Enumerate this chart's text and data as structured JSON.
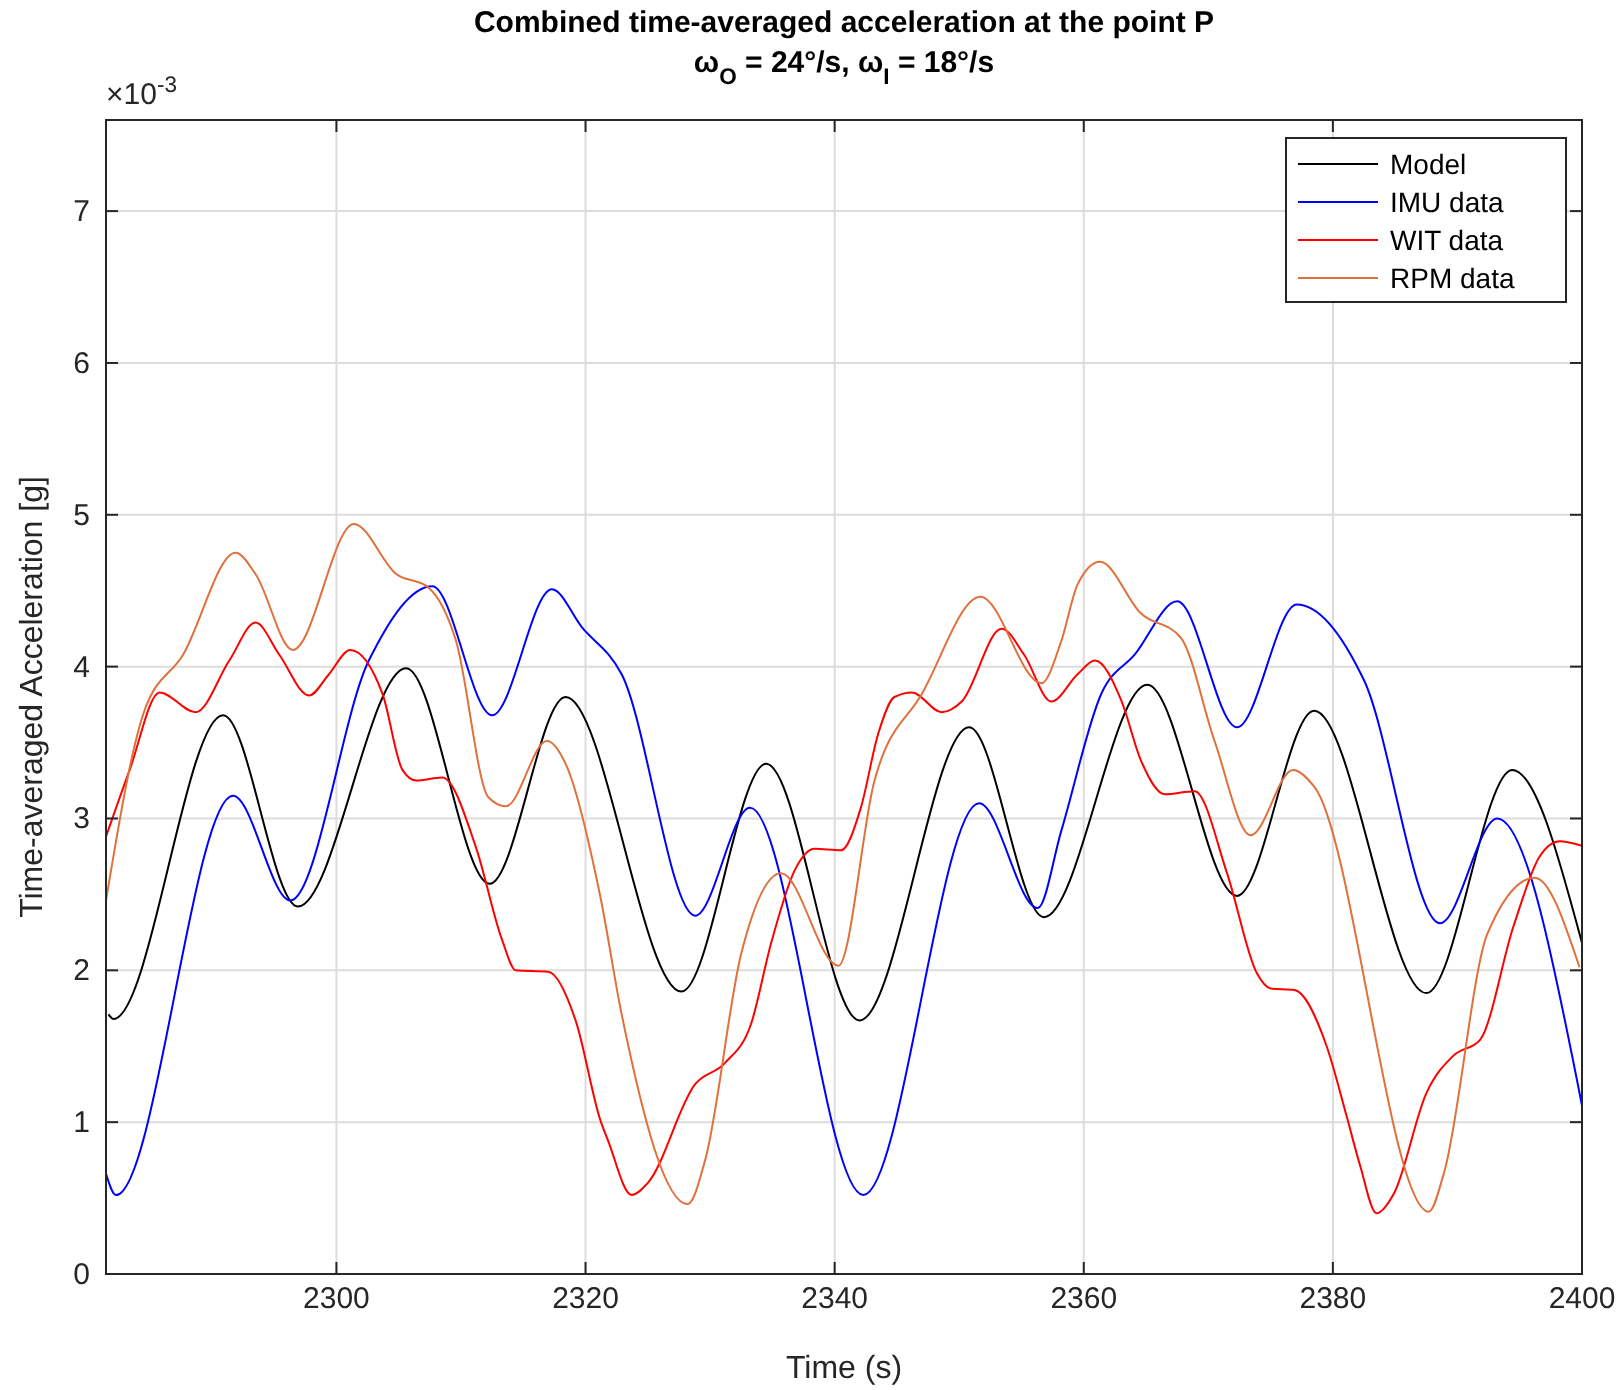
{
  "chart_data": {
    "type": "line",
    "title": "Combined time-averaged acceleration at the point P",
    "subtitle": "ω$_{O}$ = 24°/s, ω$_{I}$ = 18°/s",
    "xlabel": "Time (s)",
    "ylabel": "Time-averaged Acceleration [g]",
    "annotations": [
      "×10$^{-3}$"
    ],
    "xlim": [
      2281.5,
      2400
    ],
    "xticks": [
      2300,
      2320,
      2340,
      2360,
      2380,
      2400
    ],
    "ylim": [
      0,
      7.6
    ],
    "yticks": [
      0,
      1,
      2,
      3,
      4,
      5,
      6,
      7
    ],
    "grid": true,
    "legend": "top right",
    "line_style": "solid",
    "marker": "none",
    "series": [
      {
        "name": "Model",
        "color": "#000000",
        "x": [
          2281.7,
          2282.1,
          2290.9,
          2296.9,
          2305.6,
          2312.3,
          2318.4,
          2327.7,
          2334.5,
          2342.0,
          2350.8,
          2356.8,
          2365.1,
          2372.3,
          2378.5,
          2387.5,
          2394.4,
          2400
        ],
        "values": [
          1.71,
          1.68,
          3.68,
          2.42,
          3.99,
          2.57,
          3.8,
          1.86,
          3.36,
          1.67,
          3.6,
          2.35,
          3.88,
          2.49,
          3.71,
          1.85,
          3.32,
          2.18
        ]
      },
      {
        "name": "IMU data",
        "color": "#0000ff",
        "x": [
          2281.5,
          2282.3,
          2291.7,
          2296.3,
          2302.6,
          2307.7,
          2312.5,
          2317.3,
          2319.7,
          2322.9,
          2328.8,
          2333.2,
          2342.3,
          2351.6,
          2356.3,
          2358.2,
          2361.4,
          2364.1,
          2367.5,
          2372.3,
          2377.1,
          2382.5,
          2388.6,
          2393.2,
          2400
        ],
        "values": [
          0.66,
          0.52,
          3.15,
          2.46,
          4.04,
          4.53,
          3.68,
          4.51,
          4.26,
          3.95,
          2.36,
          3.07,
          0.52,
          3.1,
          2.41,
          2.92,
          3.82,
          4.08,
          4.43,
          3.6,
          4.41,
          3.91,
          2.31,
          3.0,
          1.11
        ]
      },
      {
        "name": "WIT data",
        "color": "#ff0000",
        "x": [
          2281.5,
          2283.4,
          2285.8,
          2288.7,
          2291.4,
          2293.5,
          2295.4,
          2297.8,
          2299.4,
          2301.1,
          2303.7,
          2305.3,
          2306.4,
          2308.5,
          2311.2,
          2313.3,
          2314.4,
          2317.0,
          2319.2,
          2321.2,
          2321.8,
          2323.7,
          2325.0,
          2328.8,
          2331.2,
          2333.3,
          2334.9,
          2336.8,
          2338.4,
          2340.5,
          2342.1,
          2343.5,
          2344.8,
          2346.2,
          2348.6,
          2350.2,
          2353.4,
          2355.2,
          2357.4,
          2359.5,
          2360.9,
          2363.0,
          2364.6,
          2366.5,
          2368.9,
          2371.5,
          2373.9,
          2375.0,
          2376.9,
          2379.5,
          2381.1,
          2382.2,
          2383.5,
          2384.9,
          2387.5,
          2389.7,
          2391.8,
          2394.5,
          2396.6,
          2398.2,
          2400
        ],
        "values": [
          2.88,
          3.32,
          3.83,
          3.7,
          4.04,
          4.29,
          4.08,
          3.81,
          3.95,
          4.11,
          3.82,
          3.32,
          3.25,
          3.27,
          2.81,
          2.2,
          2.0,
          1.99,
          1.67,
          1.01,
          0.88,
          0.52,
          0.6,
          1.25,
          1.39,
          1.65,
          2.18,
          2.66,
          2.8,
          2.79,
          3.07,
          3.56,
          3.8,
          3.83,
          3.7,
          3.77,
          4.25,
          4.08,
          3.77,
          3.95,
          4.04,
          3.78,
          3.38,
          3.16,
          3.18,
          2.64,
          1.98,
          1.88,
          1.87,
          1.5,
          1.04,
          0.71,
          0.4,
          0.53,
          1.19,
          1.44,
          1.54,
          2.29,
          2.75,
          2.85,
          2.82
        ]
      },
      {
        "name": "RPM data",
        "color": "#e0703c",
        "x": [
          2281.5,
          2284.5,
          2287.7,
          2291.9,
          2293.5,
          2296.5,
          2301.4,
          2304.8,
          2307.4,
          2309.6,
          2312.2,
          2313.6,
          2316.9,
          2318.4,
          2321.2,
          2322.9,
          2328.2,
          2329.6,
          2332.5,
          2335.7,
          2340.3,
          2343.2,
          2347.0,
          2351.7,
          2356.6,
          2358.2,
          2359.5,
          2361.3,
          2364.6,
          2367.8,
          2370.5,
          2373.4,
          2376.8,
          2378.5,
          2387.7,
          2388.9,
          2392.4,
          2396.2,
          2399.8
        ],
        "values": [
          2.46,
          3.69,
          4.08,
          4.75,
          4.61,
          4.11,
          4.94,
          4.61,
          4.52,
          4.17,
          3.14,
          3.08,
          3.51,
          3.36,
          2.48,
          1.71,
          0.46,
          0.75,
          2.11,
          2.64,
          2.03,
          3.25,
          3.82,
          4.46,
          3.89,
          4.17,
          4.54,
          4.69,
          4.35,
          4.19,
          3.51,
          2.89,
          3.32,
          3.21,
          0.41,
          0.66,
          2.24,
          2.61,
          2.02
        ]
      }
    ]
  }
}
